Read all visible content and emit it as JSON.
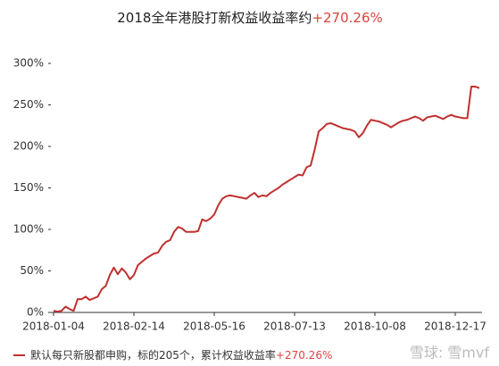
{
  "chart_data": {
    "type": "line",
    "title": "2018全年港股打新权益收益率约",
    "title_highlight": "+270.26%",
    "highlight_color": "#d9453e",
    "categories": [
      "2018-01-04",
      null,
      null,
      null,
      null,
      null,
      null,
      null,
      null,
      null,
      null,
      null,
      null,
      null,
      null,
      null,
      null,
      null,
      null,
      null,
      "2018-02-14",
      null,
      null,
      null,
      null,
      null,
      null,
      null,
      null,
      null,
      null,
      null,
      null,
      null,
      null,
      null,
      null,
      null,
      null,
      null,
      "2018-05-16",
      null,
      null,
      null,
      null,
      null,
      null,
      null,
      null,
      null,
      null,
      null,
      null,
      null,
      null,
      null,
      null,
      null,
      null,
      null,
      "2018-07-13",
      null,
      null,
      null,
      null,
      null,
      null,
      null,
      null,
      null,
      null,
      null,
      null,
      null,
      null,
      null,
      null,
      null,
      null,
      null,
      "2018-10-08",
      null,
      null,
      null,
      null,
      null,
      null,
      null,
      null,
      null,
      null,
      null,
      null,
      null,
      null,
      null,
      null,
      null,
      null,
      null,
      "2018-12-17",
      null,
      null,
      null,
      null,
      null,
      null
    ],
    "series": [
      {
        "name": "默认每只新股都申购，标的205个，累计权益收益率",
        "name_highlight": "+270.26%",
        "color": "#c0302f",
        "values": [
          2,
          1,
          2,
          7,
          4,
          2,
          16,
          16,
          19,
          15,
          17,
          19,
          28,
          32,
          45,
          54,
          46,
          53,
          48,
          40,
          45,
          57,
          61,
          65,
          68,
          71,
          72,
          80,
          85,
          87,
          97,
          103,
          101,
          97,
          97,
          97,
          98,
          112,
          110,
          113,
          118,
          129,
          137,
          140,
          141,
          140,
          139,
          138,
          137,
          141,
          144,
          139,
          141,
          140,
          144,
          147,
          150,
          154,
          157,
          160,
          163,
          166,
          165,
          175,
          177,
          196,
          218,
          222,
          227,
          228,
          226,
          224,
          222,
          221,
          220,
          218,
          211,
          216,
          225,
          232,
          231,
          230,
          228,
          226,
          223,
          226,
          229,
          231,
          232,
          234,
          236,
          234,
          231,
          235,
          236,
          237,
          235,
          233,
          236,
          238,
          236,
          235,
          234,
          234,
          272,
          272,
          270.26
        ]
      }
    ],
    "ylim": [
      0,
      300
    ],
    "yticks": [
      {
        "value": 0,
        "label": "0%"
      },
      {
        "value": 50,
        "label": "50%"
      },
      {
        "value": 100,
        "label": "100%"
      },
      {
        "value": 150,
        "label": "150%"
      },
      {
        "value": 200,
        "label": "200%"
      },
      {
        "value": 250,
        "label": "250%"
      },
      {
        "value": 300,
        "label": "300%"
      }
    ],
    "watermark": "雪球: 雪mvf"
  }
}
